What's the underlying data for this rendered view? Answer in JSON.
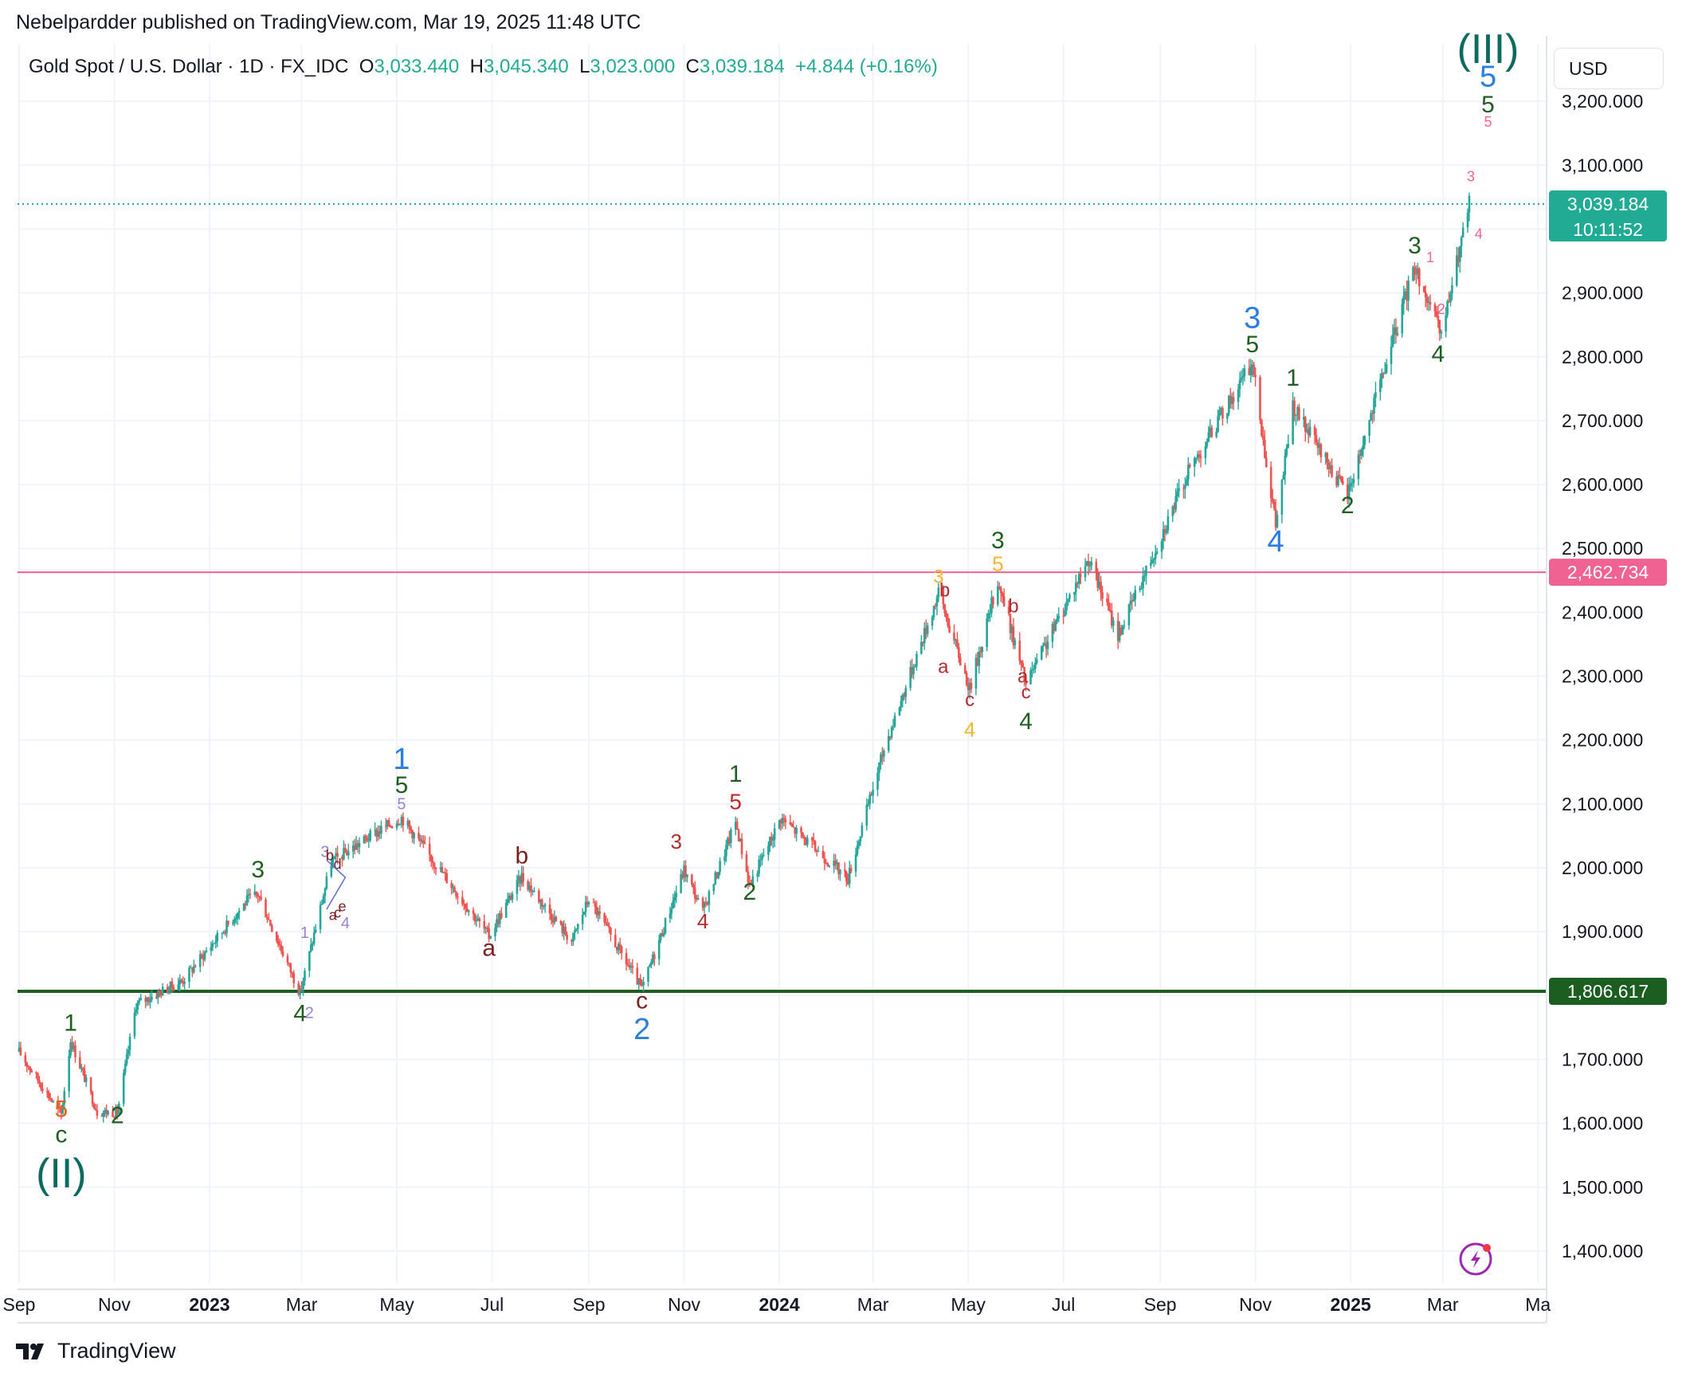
{
  "header": {
    "published_by": "Nebelpardder published on TradingView.com, Mar 19, 2025 11:48 UTC"
  },
  "legend": {
    "symbol": "Gold Spot / U.S. Dollar · 1D · FX_IDC",
    "open_label": "O",
    "open": "3,033.440",
    "high_label": "H",
    "high": "3,045.340",
    "low_label": "L",
    "low": "3,023.000",
    "close_label": "C",
    "close": "3,039.184",
    "change": "+4.844 (+0.16%)"
  },
  "currency_button": "USD",
  "footer": {
    "brand": "TradingView"
  },
  "colors": {
    "up": "#26a69a",
    "down": "#ef5350",
    "green_line": "#1b5e20",
    "pink_line": "#f06292",
    "blue_wave": "#2a7ee0",
    "green_wave": "#1e5f20",
    "red_wave": "#9b1c1c",
    "teal_wave": "#0b6b5f"
  },
  "chart_data": {
    "type": "candlestick",
    "symbol": "Gold Spot / U.S. Dollar",
    "interval": "1D",
    "ylim": [
      1350,
      3290
    ],
    "y_ticks": [
      {
        "value": 1400,
        "label": "1,400.000"
      },
      {
        "value": 1500,
        "label": "1,500.000"
      },
      {
        "value": 1600,
        "label": "1,600.000"
      },
      {
        "value": 1700,
        "label": "1,700.000"
      },
      {
        "value": 1800,
        "label": "1,800.000"
      },
      {
        "value": 1900,
        "label": "1,900.000"
      },
      {
        "value": 2000,
        "label": "2,000.000"
      },
      {
        "value": 2100,
        "label": "2,100.000"
      },
      {
        "value": 2200,
        "label": "2,200.000"
      },
      {
        "value": 2300,
        "label": "2,300.000"
      },
      {
        "value": 2400,
        "label": "2,400.000"
      },
      {
        "value": 2500,
        "label": "2,500.000"
      },
      {
        "value": 2600,
        "label": "2,600.000"
      },
      {
        "value": 2700,
        "label": "2,700.000"
      },
      {
        "value": 2800,
        "label": "2,800.000"
      },
      {
        "value": 2900,
        "label": "2,900.000"
      },
      {
        "value": 3000,
        "label": "3,000.000"
      },
      {
        "value": 3100,
        "label": "3,100.000"
      },
      {
        "value": 3200,
        "label": "3,200.000"
      }
    ],
    "x_ticks": [
      {
        "date": "2022-09-01",
        "label": "Sep",
        "bold": false
      },
      {
        "date": "2022-11-01",
        "label": "Nov",
        "bold": false
      },
      {
        "date": "2023-01-01",
        "label": "2023",
        "bold": true
      },
      {
        "date": "2023-03-01",
        "label": "Mar",
        "bold": false
      },
      {
        "date": "2023-05-01",
        "label": "May",
        "bold": false
      },
      {
        "date": "2023-07-01",
        "label": "Jul",
        "bold": false
      },
      {
        "date": "2023-09-01",
        "label": "Sep",
        "bold": false
      },
      {
        "date": "2023-11-01",
        "label": "Nov",
        "bold": false
      },
      {
        "date": "2024-01-01",
        "label": "2024",
        "bold": true
      },
      {
        "date": "2024-03-01",
        "label": "Mar",
        "bold": false
      },
      {
        "date": "2024-05-01",
        "label": "May",
        "bold": false
      },
      {
        "date": "2024-07-01",
        "label": "Jul",
        "bold": false
      },
      {
        "date": "2024-09-01",
        "label": "Sep",
        "bold": false
      },
      {
        "date": "2024-11-01",
        "label": "Nov",
        "bold": false
      },
      {
        "date": "2025-01-01",
        "label": "2025",
        "bold": true
      },
      {
        "date": "2025-03-01",
        "label": "Mar",
        "bold": false
      },
      {
        "date": "2025-05-01",
        "label": "Ma",
        "bold": false
      }
    ],
    "x_range": [
      "2022-08-31",
      "2025-05-06"
    ],
    "price_path": [
      [
        "2022-09-01",
        1712
      ],
      [
        "2022-09-28",
        1614
      ],
      [
        "2022-10-04",
        1730
      ],
      [
        "2022-10-21",
        1618
      ],
      [
        "2022-11-03",
        1617
      ],
      [
        "2022-11-15",
        1786
      ],
      [
        "2022-12-15",
        1824
      ],
      [
        "2023-01-25",
        1949
      ],
      [
        "2023-02-01",
        1959
      ],
      [
        "2023-02-28",
        1804
      ],
      [
        "2023-03-20",
        2009
      ],
      [
        "2023-04-13",
        2048
      ],
      [
        "2023-05-04",
        2079
      ],
      [
        "2023-06-29",
        1893
      ],
      [
        "2023-07-20",
        1987
      ],
      [
        "2023-08-21",
        1885
      ],
      [
        "2023-09-01",
        1952
      ],
      [
        "2023-10-05",
        1810
      ],
      [
        "2023-11-01",
        1997
      ],
      [
        "2023-11-13",
        1931
      ],
      [
        "2023-12-04",
        2072
      ],
      [
        "2023-12-13",
        1973
      ],
      [
        "2024-01-02",
        2078
      ],
      [
        "2024-02-14",
        1984
      ],
      [
        "2024-03-08",
        2186
      ],
      [
        "2024-04-12",
        2430
      ],
      [
        "2024-05-02",
        2280
      ],
      [
        "2024-05-20",
        2450
      ],
      [
        "2024-06-07",
        2287
      ],
      [
        "2024-07-17",
        2484
      ],
      [
        "2024-08-05",
        2364
      ],
      [
        "2024-09-20",
        2625
      ],
      [
        "2024-10-30",
        2790
      ],
      [
        "2024-11-14",
        2536
      ],
      [
        "2024-11-25",
        2721
      ],
      [
        "2024-12-30",
        2583
      ],
      [
        "2025-02-11",
        2942
      ],
      [
        "2025-02-28",
        2832
      ],
      [
        "2025-03-18",
        3039
      ]
    ],
    "horizontal_lines": [
      {
        "price": 1806.617,
        "label": "1,806.617",
        "color": "#1b5e20"
      },
      {
        "price": 2462.734,
        "label": "2,462.734",
        "color": "#f06292"
      }
    ],
    "last_price": {
      "price": 3039.184,
      "label": "3,039.184",
      "countdown": "10:11:52"
    },
    "wave_labels": [
      {
        "text": "(II)",
        "date": "2022-09-28",
        "price": 1500,
        "color": "#0b6b5f",
        "size": 52
      },
      {
        "text": "c",
        "date": "2022-09-28",
        "price": 1570,
        "color": "#1e5f20",
        "size": 30
      },
      {
        "text": "5",
        "date": "2022-09-28",
        "price": 1610,
        "color": "#e0651b",
        "size": 30
      },
      {
        "text": "1",
        "date": "2022-10-04",
        "price": 1745,
        "color": "#1e5f20",
        "size": 30
      },
      {
        "text": "2",
        "date": "2022-11-03",
        "price": 1600,
        "color": "#1e5f20",
        "size": 30
      },
      {
        "text": "3",
        "date": "2023-02-01",
        "price": 1985,
        "color": "#1e5f20",
        "size": 30
      },
      {
        "text": "4",
        "date": "2023-02-28",
        "price": 1760,
        "color": "#1e5f20",
        "size": 30
      },
      {
        "text": "1",
        "date": "2023-03-03",
        "price": 1890,
        "color": "#9a7fd6",
        "size": 20
      },
      {
        "text": "2",
        "date": "2023-03-06",
        "price": 1765,
        "color": "#9a7fd6",
        "size": 20
      },
      {
        "text": "3",
        "date": "2023-03-16",
        "price": 2017,
        "color": "#9a7fd6",
        "size": 20
      },
      {
        "text": "b",
        "date": "2023-03-19",
        "price": 2012,
        "color": "#7b1e1e",
        "size": 18
      },
      {
        "text": "d",
        "date": "2023-03-24",
        "price": 1998,
        "color": "#7b1e1e",
        "size": 18
      },
      {
        "text": "a",
        "date": "2023-03-21",
        "price": 1918,
        "color": "#7b1e1e",
        "size": 18
      },
      {
        "text": "c",
        "date": "2023-03-24",
        "price": 1922,
        "color": "#7b1e1e",
        "size": 18
      },
      {
        "text": "e",
        "date": "2023-03-27",
        "price": 1932,
        "color": "#7b1e1e",
        "size": 18
      },
      {
        "text": "4",
        "date": "2023-03-29",
        "price": 1905,
        "color": "#9a7fd6",
        "size": 20
      },
      {
        "text": "5",
        "date": "2023-05-04",
        "price": 2092,
        "color": "#9a7fd6",
        "size": 20
      },
      {
        "text": "5",
        "date": "2023-05-04",
        "price": 2117,
        "color": "#1e5f20",
        "size": 30
      },
      {
        "text": "1",
        "date": "2023-05-04",
        "price": 2155,
        "color": "#2a7ee0",
        "size": 38
      },
      {
        "text": "a",
        "date": "2023-06-29",
        "price": 1862,
        "color": "#7b1e1e",
        "size": 30
      },
      {
        "text": "b",
        "date": "2023-07-20",
        "price": 2007,
        "color": "#7b1e1e",
        "size": 30
      },
      {
        "text": "c",
        "date": "2023-10-05",
        "price": 1780,
        "color": "#7b1e1e",
        "size": 30
      },
      {
        "text": "2",
        "date": "2023-10-05",
        "price": 1732,
        "color": "#2a7ee0",
        "size": 38
      },
      {
        "text": "3",
        "date": "2023-10-27",
        "price": 2030,
        "color": "#b32b2b",
        "size": 26
      },
      {
        "text": "4",
        "date": "2023-11-13",
        "price": 1905,
        "color": "#b32b2b",
        "size": 26
      },
      {
        "text": "5",
        "date": "2023-12-04",
        "price": 2092,
        "color": "#c0282e",
        "size": 28
      },
      {
        "text": "1",
        "date": "2023-12-04",
        "price": 2135,
        "color": "#1e5f20",
        "size": 30
      },
      {
        "text": "2",
        "date": "2023-12-13",
        "price": 1950,
        "color": "#1e5f20",
        "size": 30
      },
      {
        "text": "3",
        "date": "2024-04-12",
        "price": 2446,
        "color": "#f3b52c",
        "size": 24
      },
      {
        "text": "b",
        "date": "2024-04-16",
        "price": 2425,
        "color": "#b32b2b",
        "size": 24
      },
      {
        "text": "a",
        "date": "2024-04-15",
        "price": 2305,
        "color": "#b32b2b",
        "size": 24
      },
      {
        "text": "c",
        "date": "2024-05-02",
        "price": 2253,
        "color": "#b32b2b",
        "size": 24
      },
      {
        "text": "4",
        "date": "2024-05-02",
        "price": 2205,
        "color": "#f3b52c",
        "size": 26
      },
      {
        "text": "5",
        "date": "2024-05-20",
        "price": 2465,
        "color": "#f3b52c",
        "size": 26
      },
      {
        "text": "3",
        "date": "2024-05-20",
        "price": 2500,
        "color": "#1e5f20",
        "size": 30
      },
      {
        "text": "b",
        "date": "2024-05-30",
        "price": 2400,
        "color": "#b32b2b",
        "size": 24
      },
      {
        "text": "a",
        "date": "2024-06-05",
        "price": 2290,
        "color": "#b32b2b",
        "size": 24
      },
      {
        "text": "c",
        "date": "2024-06-07",
        "price": 2265,
        "color": "#b32b2b",
        "size": 24
      },
      {
        "text": "4",
        "date": "2024-06-07",
        "price": 2217,
        "color": "#1e5f20",
        "size": 30
      },
      {
        "text": "5",
        "date": "2024-10-30",
        "price": 2807,
        "color": "#1e5f20",
        "size": 30
      },
      {
        "text": "3",
        "date": "2024-10-30",
        "price": 2845,
        "color": "#2a7ee0",
        "size": 38
      },
      {
        "text": "4",
        "date": "2024-11-14",
        "price": 2495,
        "color": "#2a7ee0",
        "size": 38
      },
      {
        "text": "1",
        "date": "2024-11-25",
        "price": 2755,
        "color": "#1e5f20",
        "size": 30
      },
      {
        "text": "2",
        "date": "2024-12-30",
        "price": 2555,
        "color": "#1e5f20",
        "size": 30
      },
      {
        "text": "3",
        "date": "2025-02-11",
        "price": 2962,
        "color": "#1e5f20",
        "size": 30
      },
      {
        "text": "1",
        "date": "2025-02-21",
        "price": 2948,
        "color": "#f06292",
        "size": 18
      },
      {
        "text": "2",
        "date": "2025-02-28",
        "price": 2867,
        "color": "#f06292",
        "size": 18
      },
      {
        "text": "4",
        "date": "2025-02-26",
        "price": 2792,
        "color": "#1e5f20",
        "size": 30
      },
      {
        "text": "3",
        "date": "2025-03-19",
        "price": 3075,
        "color": "#f06292",
        "size": 18
      },
      {
        "text": "4",
        "date": "2025-03-24",
        "price": 2985,
        "color": "#f06292",
        "size": 18
      },
      {
        "text": "5",
        "date": "2025-03-30",
        "price": 3160,
        "color": "#f06292",
        "size": 18
      },
      {
        "text": "5",
        "date": "2025-03-30",
        "price": 3183,
        "color": "#1e5f20",
        "size": 30
      },
      {
        "text": "5",
        "date": "2025-03-30",
        "price": 3223,
        "color": "#2a7ee0",
        "size": 38
      },
      {
        "text": "(III)",
        "date": "2025-03-30",
        "price": 3260,
        "color": "#0b6b5f",
        "size": 52
      }
    ]
  }
}
